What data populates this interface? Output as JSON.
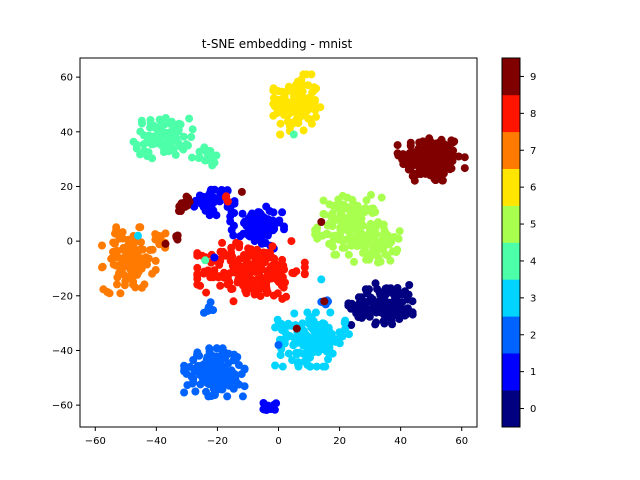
{
  "chart_data": {
    "type": "scatter",
    "title": "t-SNE embedding - mnist",
    "xlabel": "",
    "ylabel": "",
    "xlim": [
      -65,
      65
    ],
    "ylim": [
      -68,
      67
    ],
    "xticks": [
      -60,
      -40,
      -20,
      0,
      20,
      40,
      60
    ],
    "yticks": [
      -60,
      -40,
      -20,
      0,
      20,
      40,
      60
    ],
    "grid": false,
    "colormap": "jet",
    "colorbar": {
      "ticks": [
        0,
        1,
        2,
        3,
        4,
        5,
        6,
        7,
        8,
        9
      ],
      "colors": [
        "#000080",
        "#0000ff",
        "#0063ff",
        "#00d4ff",
        "#4effa9",
        "#a9ff4e",
        "#ffe500",
        "#ff7a00",
        "#ff1400",
        "#800000"
      ]
    },
    "clusters": [
      {
        "label": 9,
        "cx": 50,
        "cy": 30,
        "sx": 5,
        "sy": 4.5,
        "n": 160
      },
      {
        "label": 6,
        "cx": 6,
        "cy": 50,
        "sx": 3.5,
        "sy": 5,
        "n": 130
      },
      {
        "label": 4,
        "cx": -38,
        "cy": 38,
        "sx": 4.5,
        "sy": 3.5,
        "n": 90
      },
      {
        "label": 4,
        "cx": -24,
        "cy": 31,
        "sx": 2.5,
        "sy": 1.5,
        "n": 20
      },
      {
        "label": 5,
        "cx": 23,
        "cy": 6,
        "sx": 5,
        "sy": 5,
        "n": 130
      },
      {
        "label": 5,
        "cx": 32,
        "cy": -1,
        "sx": 3.5,
        "sy": 3.5,
        "n": 60
      },
      {
        "label": 1,
        "cx": -21,
        "cy": 15,
        "sx": 3,
        "sy": 2.5,
        "n": 45
      },
      {
        "label": 1,
        "cx": -7,
        "cy": 5,
        "sx": 4,
        "sy": 3.5,
        "n": 90
      },
      {
        "label": 7,
        "cx": -49,
        "cy": -7,
        "sx": 4,
        "sy": 5.5,
        "n": 120
      },
      {
        "label": 7,
        "cx": -39,
        "cy": 2,
        "sx": 2,
        "sy": 2,
        "n": 10
      },
      {
        "label": 8,
        "cx": -9,
        "cy": -11,
        "sx": 8,
        "sy": 5,
        "n": 210
      },
      {
        "label": 8,
        "cx": -17,
        "cy": 16,
        "sx": 1,
        "sy": 1,
        "n": 3
      },
      {
        "label": 0,
        "cx": 35,
        "cy": -23,
        "sx": 5.5,
        "sy": 3.5,
        "n": 120
      },
      {
        "label": 3,
        "cx": 11,
        "cy": -36,
        "sx": 5.5,
        "sy": 4.5,
        "n": 150
      },
      {
        "label": 3,
        "cx": 2,
        "cy": -31,
        "sx": 1.5,
        "sy": 1,
        "n": 10
      },
      {
        "label": 2,
        "cx": -21,
        "cy": -48,
        "sx": 4.5,
        "sy": 4,
        "n": 170
      },
      {
        "label": 2,
        "cx": -22,
        "cy": -24,
        "sx": 1.2,
        "sy": 1.5,
        "n": 8
      },
      {
        "label": 2,
        "cx": 14,
        "cy": -22,
        "sx": 1,
        "sy": 1,
        "n": 5
      },
      {
        "label": 1,
        "cx": -3,
        "cy": -61,
        "sx": 1.3,
        "sy": 1.3,
        "n": 15
      },
      {
        "label": 9,
        "cx": -31,
        "cy": 13,
        "sx": 1.5,
        "sy": 1.5,
        "n": 12
      },
      {
        "label": 9,
        "cx": -33,
        "cy": 1,
        "sx": 1,
        "sy": 1,
        "n": 4
      },
      {
        "label": 9,
        "cx": 36,
        "cy": -24,
        "sx": 4,
        "sy": 3,
        "n": 0
      }
    ],
    "points": [
      {
        "x": 14,
        "y": 7,
        "label": 9
      },
      {
        "x": 15,
        "y": -22,
        "label": 9
      },
      {
        "x": 6,
        "y": -32,
        "label": 9
      },
      {
        "x": -12,
        "y": 18,
        "label": 9
      },
      {
        "x": -37,
        "y": -1,
        "label": 9
      },
      {
        "x": -24,
        "y": -7,
        "label": 4
      },
      {
        "x": -46,
        "y": 2,
        "label": 3
      },
      {
        "x": 14,
        "y": -14,
        "label": 3
      },
      {
        "x": 0,
        "y": -38,
        "label": 2
      },
      {
        "x": 5,
        "y": 39,
        "label": 4
      },
      {
        "x": -21,
        "y": -6,
        "label": 1
      },
      {
        "x": -23,
        "y": -25,
        "label": 2
      }
    ]
  }
}
